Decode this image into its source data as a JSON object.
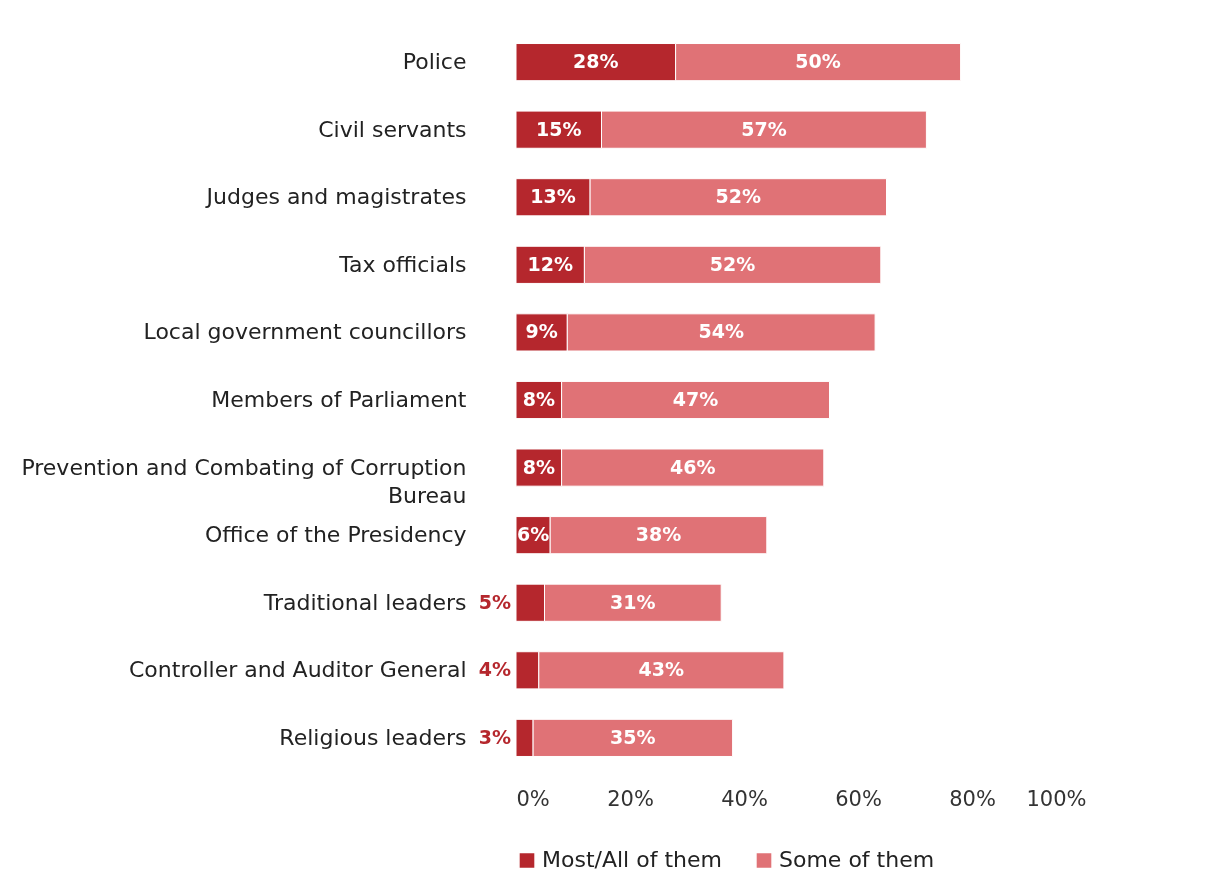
{
  "chart_data": {
    "type": "bar",
    "orientation": "horizontal",
    "stacked": true,
    "categories": [
      "Police",
      "Civil servants",
      "Judges and magistrates",
      "Tax officials",
      "Local government councillors",
      "Members of Parliament",
      "Prevention and Combating of Corruption Bureau",
      "Office of the Presidency",
      "Traditional leaders",
      "Controller and Auditor General",
      "Religious leaders"
    ],
    "series": [
      {
        "name": "Most/All of them",
        "color": "#b5272d",
        "values": [
          28,
          15,
          13,
          12,
          9,
          8,
          8,
          6,
          5,
          4,
          3
        ],
        "value_labels": [
          "28%",
          "15%",
          "13%",
          "12%",
          "9%",
          "8%",
          "8%",
          "6%",
          "5%",
          "4%",
          "3%"
        ]
      },
      {
        "name": "Some of them",
        "color": "#e07276",
        "values": [
          50,
          57,
          52,
          52,
          54,
          47,
          46,
          38,
          31,
          43,
          35
        ],
        "value_labels": [
          "50%",
          "57%",
          "52%",
          "52%",
          "54%",
          "47%",
          "46%",
          "38%",
          "31%",
          "43%",
          "35%"
        ]
      }
    ],
    "xlim": [
      0,
      100
    ],
    "xticks": [
      {
        "value": 0,
        "label": "0%"
      },
      {
        "value": 20,
        "label": "20%"
      },
      {
        "value": 40,
        "label": "40%"
      },
      {
        "value": 60,
        "label": "60%"
      },
      {
        "value": 80,
        "label": "80%"
      },
      {
        "value": 100,
        "label": "100%"
      }
    ],
    "legend": "bottom",
    "grid": false
  }
}
